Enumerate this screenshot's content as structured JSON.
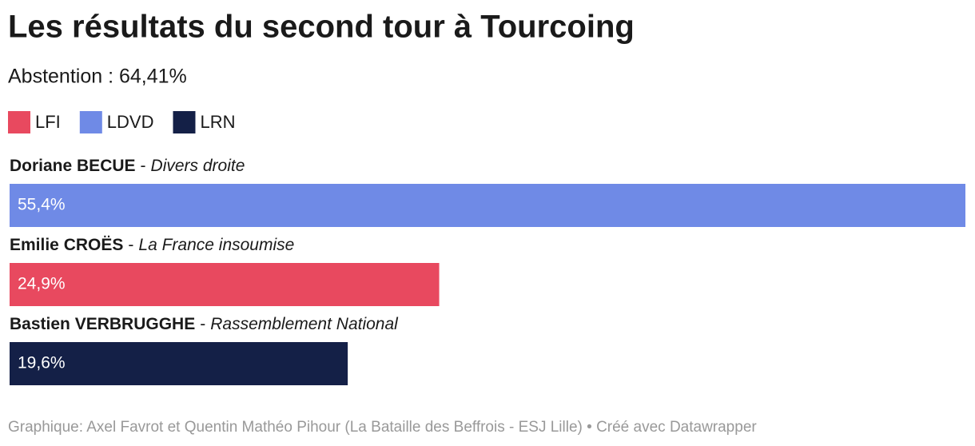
{
  "chart_data": {
    "type": "bar",
    "orientation": "horizontal",
    "title": "Les résultats du second tour à Tourcoing",
    "subtitle": "Abstention : 64,41%",
    "legend": [
      {
        "name": "LFI",
        "color": "#e8495f"
      },
      {
        "name": "LDVD",
        "color": "#6f8ae6"
      },
      {
        "name": "LRN",
        "color": "#142047"
      }
    ],
    "categories": [
      "Doriane BECUE",
      "Emilie CROËS",
      "Bastien VERBRUGGHE"
    ],
    "separator": "-",
    "parties": [
      "Divers droite",
      "La France insoumise",
      "Rassemblement National"
    ],
    "values": [
      55.4,
      24.9,
      19.6
    ],
    "value_labels": [
      "55,4%",
      "24,9%",
      "19,6%"
    ],
    "colors": [
      "#6f8ae6",
      "#e8495f",
      "#142047"
    ],
    "source": "Graphique: Axel Favrot et Quentin Mathéo Pihour (La Bataille des Beffrois - ESJ Lille) • Créé avec Datawrapper"
  }
}
